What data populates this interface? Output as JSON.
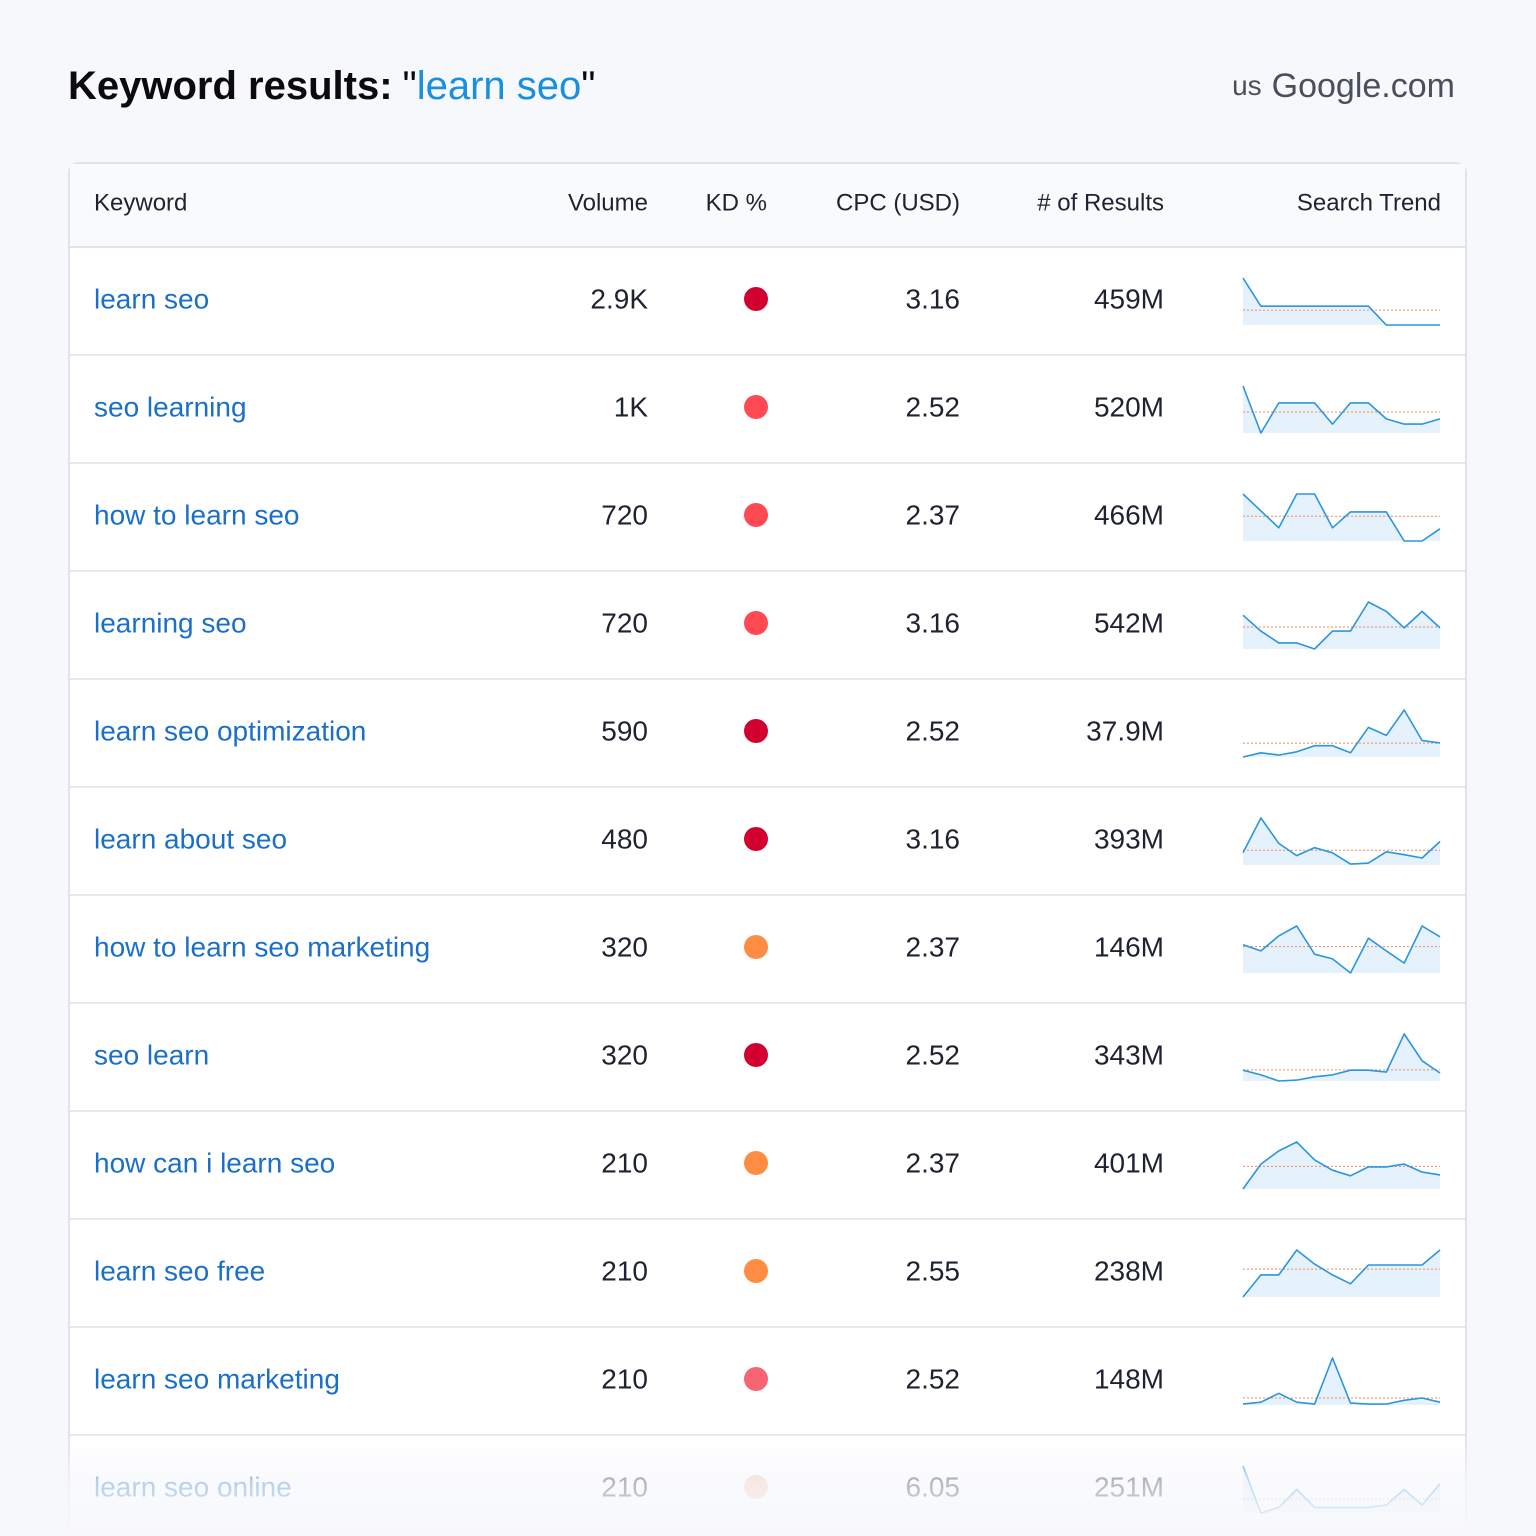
{
  "header": {
    "title": "Keyword results:",
    "quote": "\"",
    "query": "learn seo",
    "database": "us",
    "engine": "Google.com"
  },
  "table": {
    "columns": [
      "Keyword",
      "Volume",
      "KD %",
      "CPC (USD)",
      "# of Results",
      "Search Trend"
    ],
    "rows": [
      {
        "keyword": "learn seo",
        "volume": "2.9K",
        "kd_color": "#d1002f",
        "cpc": "3.16",
        "results": "459M",
        "trend": [
          100,
          40,
          40,
          40,
          40,
          40,
          40,
          40,
          0,
          0,
          0,
          0
        ]
      },
      {
        "keyword": "seo learning",
        "volume": "1K",
        "kd_color": "#ff4953",
        "cpc": "2.52",
        "results": "520M",
        "trend": [
          100,
          0,
          64,
          64,
          64,
          19,
          64,
          64,
          30,
          19,
          19,
          30
        ]
      },
      {
        "keyword": "how to learn seo",
        "volume": "720",
        "kd_color": "#ff4953",
        "cpc": "2.37",
        "results": "466M",
        "trend": [
          100,
          64,
          28,
          100,
          100,
          28,
          62,
          62,
          62,
          0,
          0,
          26
        ]
      },
      {
        "keyword": "learning seo",
        "volume": "720",
        "kd_color": "#ff4953",
        "cpc": "3.16",
        "results": "542M",
        "trend": [
          72,
          38,
          13,
          13,
          0,
          38,
          38,
          100,
          80,
          45,
          80,
          45
        ]
      },
      {
        "keyword": "learn seo optimization",
        "volume": "590",
        "kd_color": "#d1002f",
        "cpc": "2.52",
        "results": "37.9M",
        "trend": [
          0,
          9,
          4,
          11,
          24,
          24,
          9,
          63,
          46,
          100,
          35,
          30
        ]
      },
      {
        "keyword": "learn about seo",
        "volume": "480",
        "kd_color": "#d1002f",
        "cpc": "3.16",
        "results": "393M",
        "trend": [
          26,
          100,
          46,
          20,
          37,
          26,
          2,
          4,
          28,
          22,
          15,
          50
        ]
      },
      {
        "keyword": "how to learn seo marketing",
        "volume": "320",
        "kd_color": "#ff8c43",
        "cpc": "2.37",
        "results": "146M",
        "trend": [
          60,
          47,
          79,
          100,
          40,
          30,
          0,
          74,
          47,
          21,
          100,
          77
        ]
      },
      {
        "keyword": "seo learn",
        "volume": "320",
        "kd_color": "#d1002f",
        "cpc": "2.52",
        "results": "343M",
        "trend": [
          23,
          13,
          0,
          2,
          9,
          13,
          23,
          23,
          19,
          100,
          43,
          17
        ]
      },
      {
        "keyword": "how can i learn seo",
        "volume": "210",
        "kd_color": "#ff8c43",
        "cpc": "2.37",
        "results": "401M",
        "trend": [
          0,
          53,
          81,
          100,
          62,
          40,
          28,
          47,
          47,
          53,
          36,
          30
        ]
      },
      {
        "keyword": "learn seo free",
        "volume": "210",
        "kd_color": "#ff8c43",
        "cpc": "2.55",
        "results": "238M",
        "trend": [
          0,
          47,
          47,
          100,
          70,
          47,
          28,
          68,
          68,
          68,
          68,
          100
        ]
      },
      {
        "keyword": "learn seo marketing",
        "volume": "210",
        "kd_color": "#f86473",
        "cpc": "2.52",
        "results": "148M",
        "trend": [
          2,
          6,
          25,
          6,
          2,
          100,
          4,
          2,
          2,
          10,
          15,
          6
        ]
      },
      {
        "keyword": "learn seo online",
        "volume": "210",
        "kd_color": "#f7c2b0",
        "cpc": "6.05",
        "results": "251M",
        "trend": [
          100,
          0,
          12,
          50,
          12,
          12,
          12,
          12,
          17,
          50,
          17,
          62
        ]
      }
    ]
  }
}
